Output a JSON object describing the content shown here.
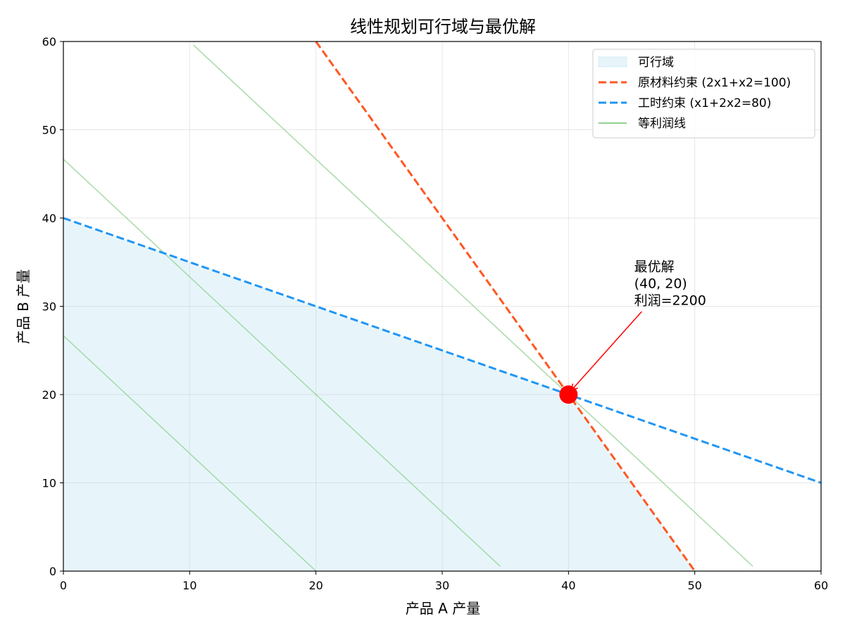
{
  "chart_data": {
    "type": "line",
    "title": "线性规划可行域与最优解",
    "xlabel": "产品 A 产量",
    "ylabel": "产品 B 产量",
    "xlim": [
      0,
      60
    ],
    "ylim": [
      0,
      60
    ],
    "xticks": [
      0,
      10,
      20,
      30,
      40,
      50,
      60
    ],
    "yticks": [
      0,
      10,
      20,
      30,
      40,
      50,
      60
    ],
    "grid": true,
    "legend_position": "top-right",
    "feasible_region": {
      "name": "可行域",
      "color": "#87CEEB",
      "vertices": [
        [
          0,
          0
        ],
        [
          0,
          40
        ],
        [
          40,
          20
        ],
        [
          50,
          0
        ]
      ]
    },
    "series": [
      {
        "name": "原材料约束 (2x1+x2=100)",
        "style": "dashed",
        "color": "#FF5722",
        "x": [
          20,
          50
        ],
        "y": [
          60,
          0
        ]
      },
      {
        "name": "工时约束 (x1+2x2=80)",
        "style": "dashed",
        "color": "#2196F3",
        "x": [
          0,
          60
        ],
        "y": [
          40,
          10
        ]
      },
      {
        "name": "等利润线",
        "style": "solid",
        "color": "#90D090",
        "lines": [
          {
            "x": [
              0,
              20
            ],
            "y": [
              26.67,
              0
            ]
          },
          {
            "x": [
              0,
              34.6
            ],
            "y": [
              46.67,
              0.53
            ]
          },
          {
            "x": [
              10.3,
              54.6
            ],
            "y": [
              59.6,
              0.53
            ]
          }
        ]
      }
    ],
    "optimal_point": {
      "x": 40,
      "y": 20,
      "color": "#FF0000",
      "annotation": [
        "最优解",
        "(40, 20)",
        "利润=2200"
      ],
      "annotation_anchor": [
        45.2,
        34.0
      ],
      "arrow_start": [
        45.8,
        29.4
      ]
    }
  }
}
